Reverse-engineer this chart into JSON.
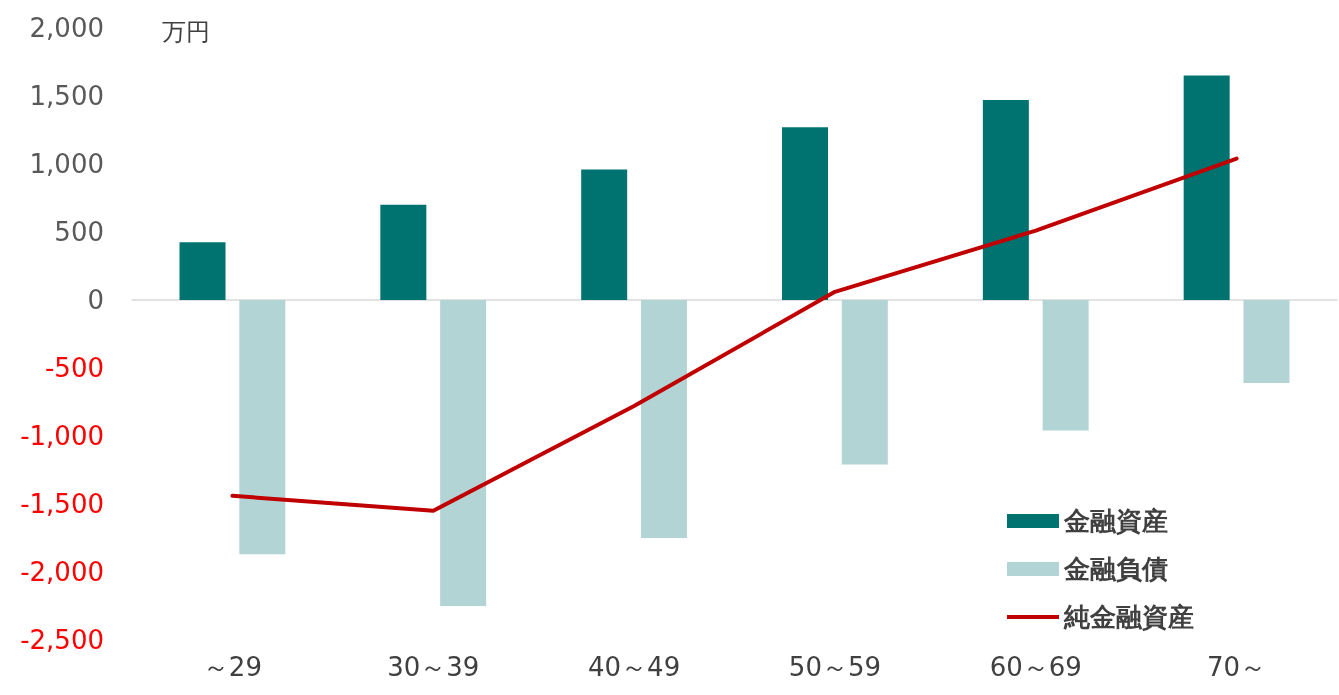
{
  "chart_data": {
    "type": "bar",
    "ylabel": "万円",
    "categories": [
      "～29",
      "30～39",
      "40～49",
      "50～59",
      "60～69",
      "70～"
    ],
    "series": [
      {
        "name": "金融資産",
        "color": "#007370",
        "values": [
          425,
          700,
          960,
          1270,
          1470,
          1650
        ]
      },
      {
        "name": "金融負債",
        "color": "#b3d4d5",
        "values": [
          -1870,
          -2250,
          -1750,
          -1210,
          -960,
          -610
        ]
      },
      {
        "name": "純金融資産",
        "type": "line",
        "color": "#c00000",
        "marker": "none",
        "values": [
          -1440,
          -1550,
          -780,
          60,
          510,
          1040
        ]
      }
    ],
    "ylim": [
      -2500,
      2000
    ],
    "yticks": [
      {
        "value": -2500,
        "label": "-2,500"
      },
      {
        "value": -2000,
        "label": "-2,000"
      },
      {
        "value": -1500,
        "label": "-1,500"
      },
      {
        "value": -1000,
        "label": "-1,000"
      },
      -500,
      0,
      500,
      {
        "value": 1000,
        "label": "1,000"
      },
      {
        "value": 1500,
        "label": "1,500"
      },
      {
        "value": 2000,
        "label": "2,000"
      }
    ],
    "legend": "bottom right"
  }
}
